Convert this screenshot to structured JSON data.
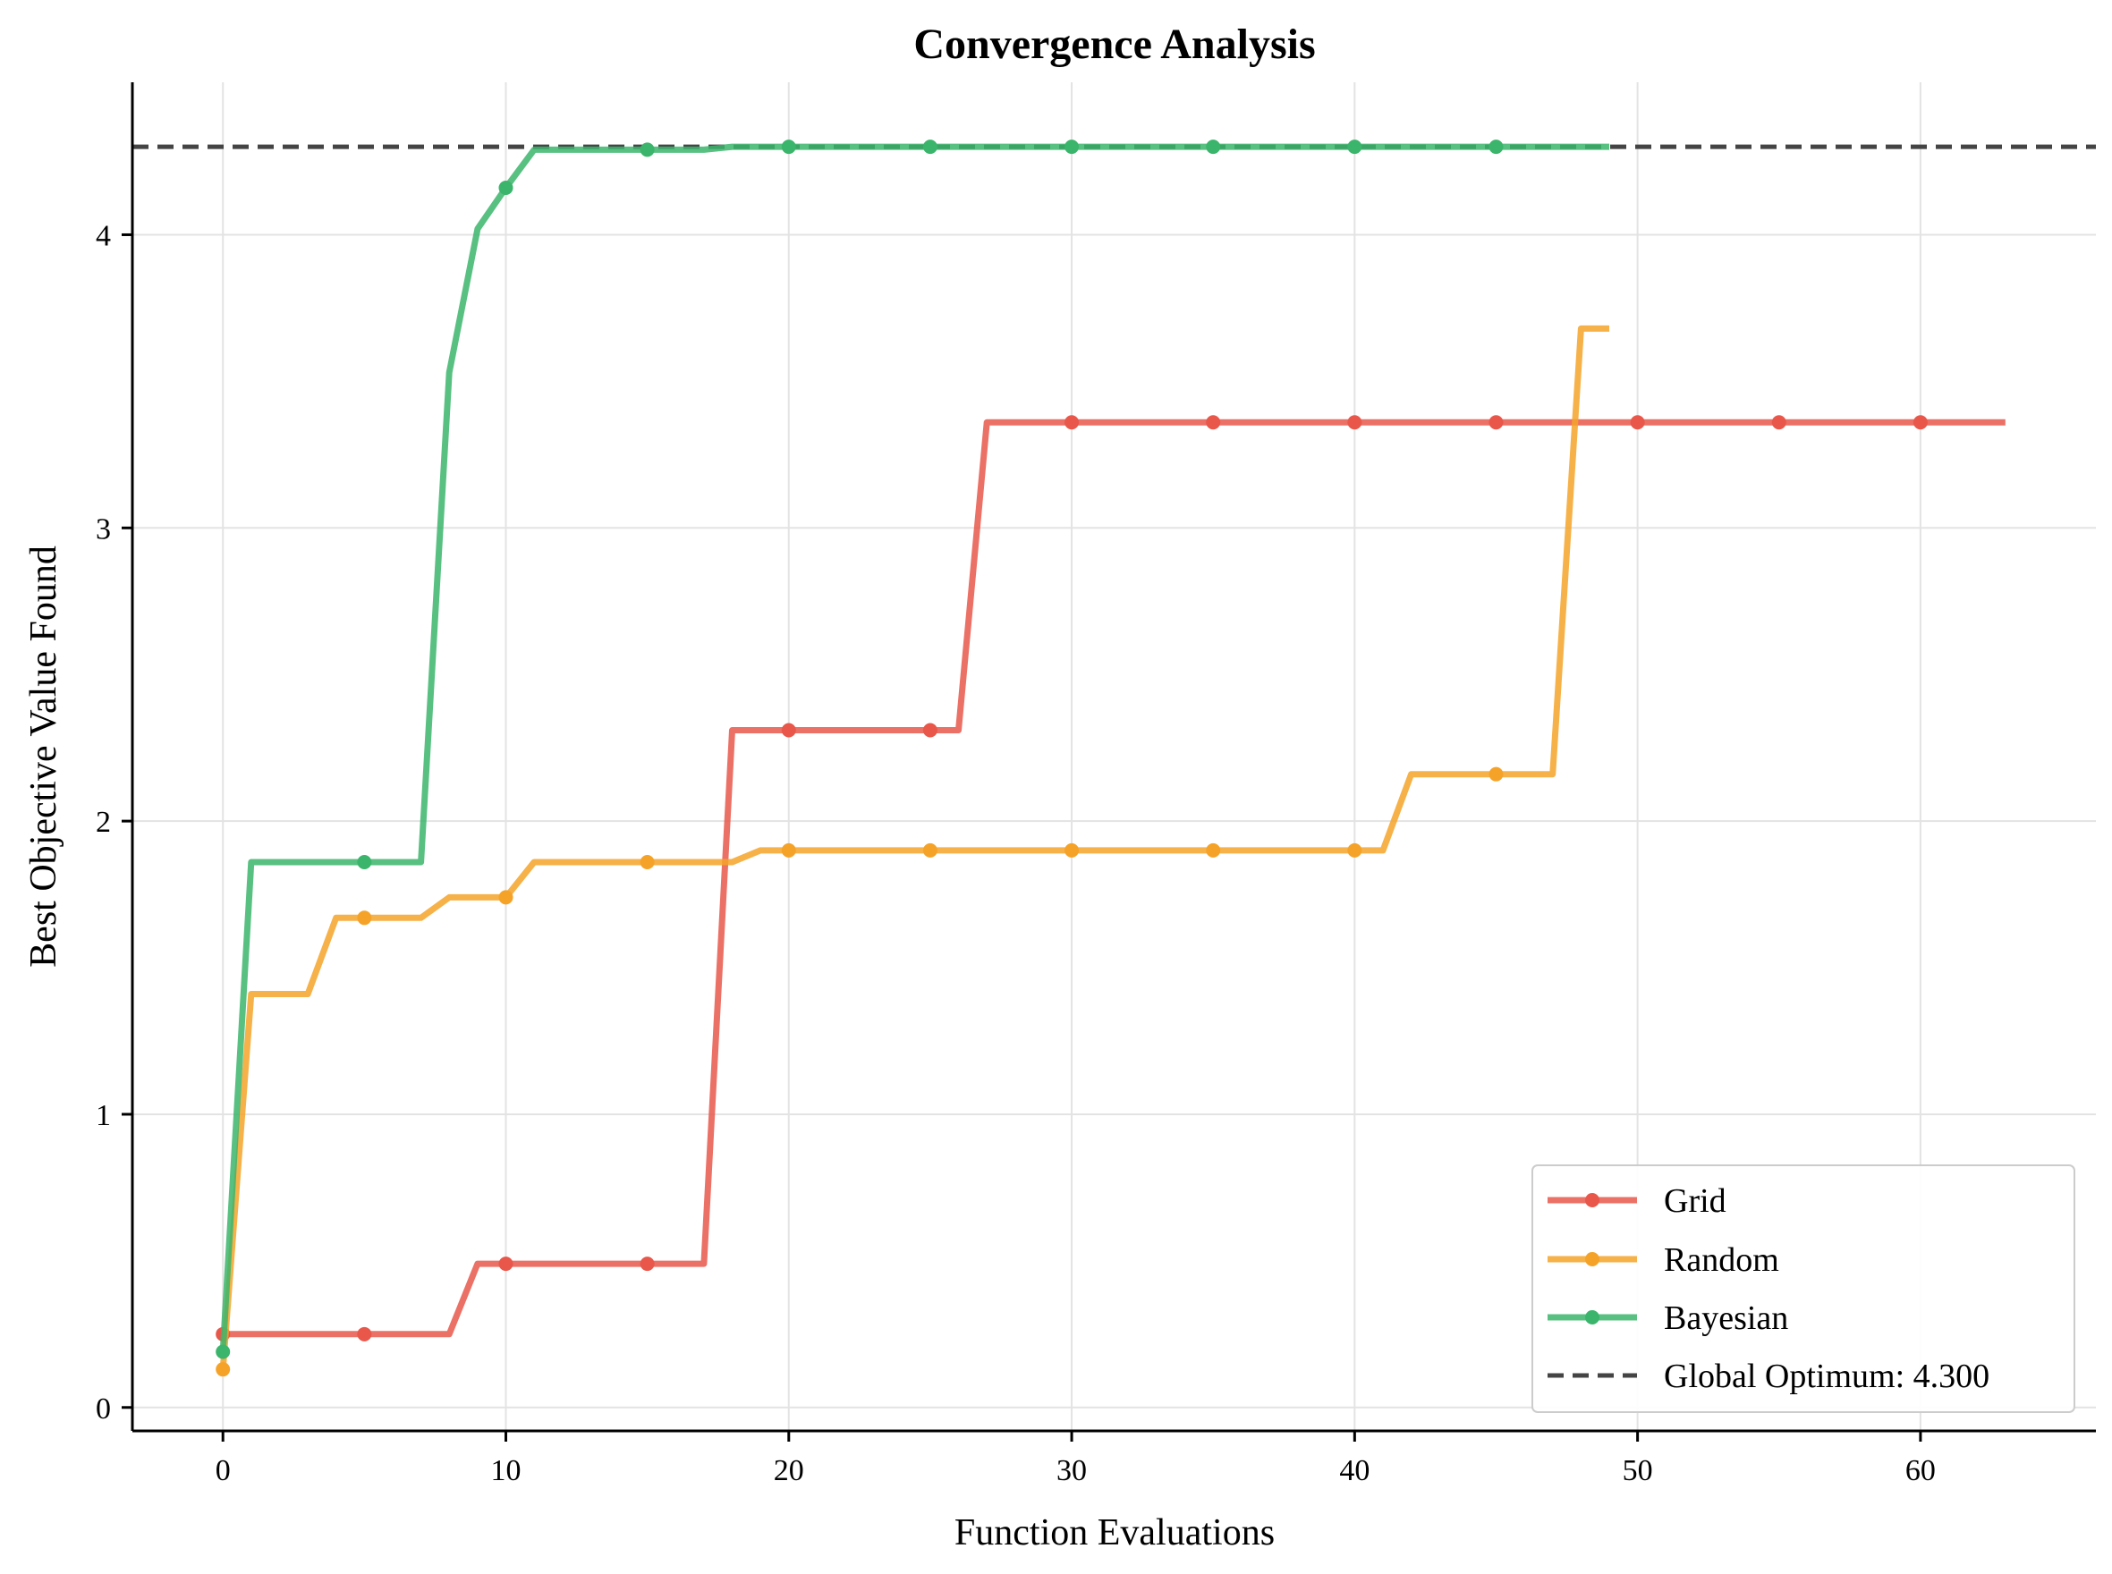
{
  "chart_data": {
    "type": "line",
    "title": "Convergence Analysis",
    "xlabel": "Function Evaluations",
    "ylabel": "Best Objective Value Found",
    "xlim": [
      -3.2,
      66.2
    ],
    "ylim": [
      -0.08,
      4.52
    ],
    "xticks": [
      "0",
      "10",
      "20",
      "30",
      "40",
      "50",
      "60"
    ],
    "yticks": [
      "0",
      "1",
      "2",
      "3",
      "4"
    ],
    "grid": true,
    "legend_position": "bottom-right",
    "series": [
      {
        "name": "Grid",
        "color": "#e8574a",
        "marker_every": 5,
        "values": [
          0.25,
          0.25,
          0.25,
          0.25,
          0.25,
          0.25,
          0.25,
          0.25,
          0.25,
          0.49,
          0.49,
          0.49,
          0.49,
          0.49,
          0.49,
          0.49,
          0.49,
          0.49,
          2.31,
          2.31,
          2.31,
          2.31,
          2.31,
          2.31,
          2.31,
          2.31,
          2.31,
          3.36,
          3.36,
          3.36,
          3.36,
          3.36,
          3.36,
          3.36,
          3.36,
          3.36,
          3.36,
          3.36,
          3.36,
          3.36,
          3.36,
          3.36,
          3.36,
          3.36,
          3.36,
          3.36,
          3.36,
          3.36,
          3.36,
          3.36,
          3.36,
          3.36,
          3.36,
          3.36,
          3.36,
          3.36,
          3.36,
          3.36,
          3.36,
          3.36,
          3.36,
          3.36,
          3.36,
          3.36
        ]
      },
      {
        "name": "Random",
        "color": "#f5a328",
        "marker_every": 5,
        "values": [
          0.13,
          1.41,
          1.41,
          1.41,
          1.67,
          1.67,
          1.67,
          1.67,
          1.74,
          1.74,
          1.74,
          1.86,
          1.86,
          1.86,
          1.86,
          1.86,
          1.86,
          1.86,
          1.86,
          1.9,
          1.9,
          1.9,
          1.9,
          1.9,
          1.9,
          1.9,
          1.9,
          1.9,
          1.9,
          1.9,
          1.9,
          1.9,
          1.9,
          1.9,
          1.9,
          1.9,
          1.9,
          1.9,
          1.9,
          1.9,
          1.9,
          1.9,
          2.16,
          2.16,
          2.16,
          2.16,
          2.16,
          2.16,
          3.68,
          3.68
        ]
      },
      {
        "name": "Bayesian",
        "color": "#3bb56b",
        "marker_every": 5,
        "values": [
          0.19,
          1.86,
          1.86,
          1.86,
          1.86,
          1.86,
          1.86,
          1.86,
          3.53,
          4.02,
          4.16,
          4.29,
          4.29,
          4.29,
          4.29,
          4.29,
          4.29,
          4.29,
          4.3,
          4.3,
          4.3,
          4.3,
          4.3,
          4.3,
          4.3,
          4.3,
          4.3,
          4.3,
          4.3,
          4.3,
          4.3,
          4.3,
          4.3,
          4.3,
          4.3,
          4.3,
          4.3,
          4.3,
          4.3,
          4.3,
          4.3,
          4.3,
          4.3,
          4.3,
          4.3,
          4.3,
          4.3,
          4.3,
          4.3,
          4.3
        ]
      }
    ],
    "reference_line": {
      "label": "Global Optimum: 4.300",
      "value": 4.3,
      "color": "#444444",
      "style": "dashed"
    }
  }
}
